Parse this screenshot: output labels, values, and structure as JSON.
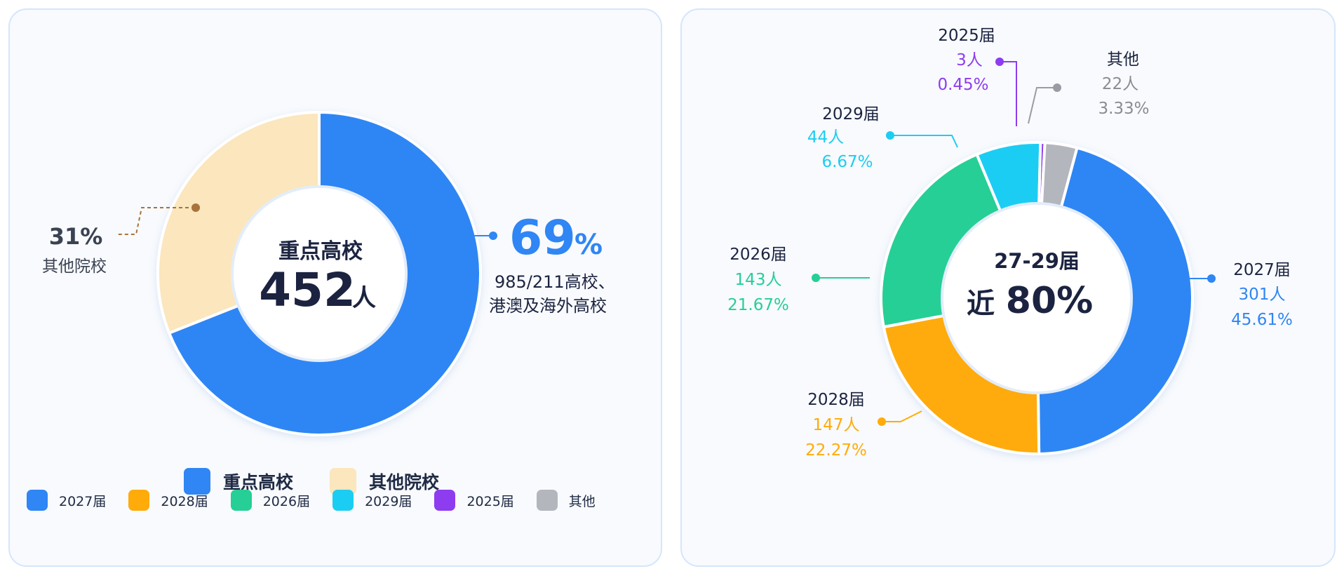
{
  "colors": {
    "blue": "#2f86f4",
    "cream": "#fbe6bd",
    "orange": "#ffab0a",
    "green": "#25cf95",
    "cyan": "#1ccdf3",
    "purple": "#8e3cf0",
    "gray": "#b4b6bd",
    "ink": "#1b2340"
  },
  "chart_data": [
    {
      "type": "pie",
      "variant": "donut",
      "slices": [
        {
          "label": "重点高校",
          "value": 69,
          "color": "#2f86f4"
        },
        {
          "label": "其他院校",
          "value": 31,
          "color": "#fbe6bd"
        }
      ],
      "center": {
        "title": "重点高校",
        "count": "452",
        "unit": "人"
      },
      "callouts": {
        "main_percent": "69",
        "percent_sign": "%",
        "main_desc_1": "985/211高校、",
        "main_desc_2": "港澳及海外高校",
        "other_percent": "31%",
        "other_label": "其他院校"
      },
      "legend": [
        "重点高校",
        "其他院校"
      ]
    },
    {
      "type": "pie",
      "variant": "donut",
      "slices": [
        {
          "label": "2027届",
          "count": "301人",
          "percent": "45.61%",
          "value": 301,
          "color": "#2f86f4"
        },
        {
          "label": "2028届",
          "count": "147人",
          "percent": "22.27%",
          "value": 147,
          "color": "#ffab0a"
        },
        {
          "label": "2026届",
          "count": "143人",
          "percent": "21.67%",
          "value": 143,
          "color": "#25cf95"
        },
        {
          "label": "2029届",
          "count": "44人",
          "percent": "6.67%",
          "value": 44,
          "color": "#1ccdf3"
        },
        {
          "label": "2025届",
          "count": "3人",
          "percent": "0.45%",
          "value": 3,
          "color": "#8e3cf0"
        },
        {
          "label": "其他",
          "count": "22人",
          "percent": "3.33%",
          "value": 22,
          "color": "#b4b6bd"
        }
      ],
      "center": {
        "title": "27-29届",
        "prefix": "近",
        "value": "80%"
      },
      "legend": [
        "2027届",
        "2028届",
        "2026届",
        "2029届",
        "2025届",
        "其他"
      ]
    }
  ]
}
